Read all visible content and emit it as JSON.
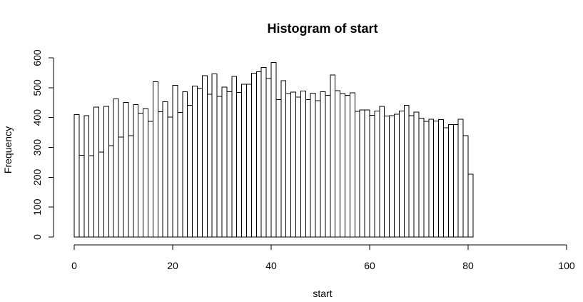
{
  "chart_data": {
    "type": "bar",
    "title": "Histogram of start",
    "xlabel": "start",
    "ylabel": "Frequency",
    "xlim": [
      0,
      101
    ],
    "ylim": [
      0,
      600
    ],
    "xticks": [
      0,
      20,
      40,
      60,
      80,
      100
    ],
    "yticks": [
      0,
      100,
      200,
      300,
      400,
      500,
      600
    ],
    "bin_width": 1,
    "bin_start": 0,
    "values": [
      410,
      274,
      406,
      272,
      435,
      284,
      437,
      306,
      463,
      335,
      451,
      340,
      444,
      415,
      430,
      387,
      520,
      419,
      453,
      402,
      508,
      417,
      487,
      441,
      506,
      498,
      540,
      478,
      546,
      471,
      502,
      487,
      538,
      484,
      512,
      512,
      549,
      553,
      568,
      531,
      584,
      460,
      523,
      480,
      485,
      468,
      489,
      460,
      482,
      456,
      486,
      475,
      543,
      490,
      480,
      474,
      483,
      421,
      425,
      425,
      407,
      422,
      437,
      405,
      406,
      411,
      422,
      441,
      406,
      418,
      398,
      387,
      395,
      388,
      393,
      366,
      376,
      376,
      394,
      340,
      210,
      0,
      0,
      0,
      0,
      0,
      0,
      0,
      0,
      0,
      0,
      0,
      0,
      0,
      0,
      0,
      0,
      0,
      0,
      0,
      0
    ],
    "grid": false,
    "legend": "none"
  }
}
